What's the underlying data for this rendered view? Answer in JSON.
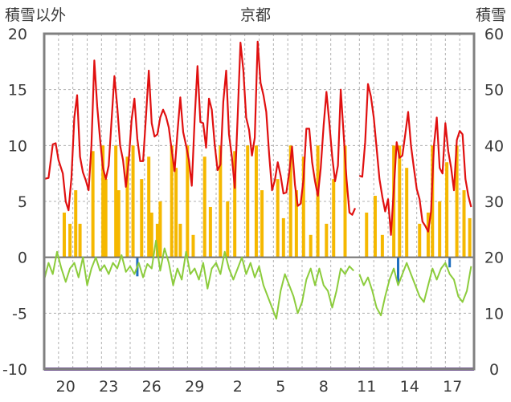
{
  "chart_data": {
    "type": "line",
    "title": "京都",
    "left_axis_label": "積雪以外",
    "right_axis_label": "積雪",
    "left_ylim": [
      -10,
      20
    ],
    "left_yticks": [
      20,
      15,
      10,
      5,
      0,
      -5,
      -10
    ],
    "right_ylim": [
      0,
      60
    ],
    "right_yticks": [
      60,
      50,
      40,
      30,
      20,
      10,
      0
    ],
    "x_tick_labels": [
      "20",
      "23",
      "26",
      "29",
      "2",
      "5",
      "8",
      "11",
      "14",
      "17"
    ],
    "x_day_range": [
      0,
      30
    ],
    "x_tick_days": [
      1.5,
      4.5,
      7.5,
      10.5,
      13.5,
      16.5,
      19.5,
      22.5,
      25.5,
      28.5
    ],
    "grid": "dashed",
    "colors": {
      "temperature": "#e01010",
      "secondary": "#8ccc3c",
      "precipitation": "#f5b800",
      "blue_bars": "#1f6fbf",
      "snow_depth": "#6a3aa0",
      "frame": "#808080"
    },
    "series": [
      {
        "key": "temperature",
        "axis": "left",
        "points": [
          [
            0.0,
            7.0
          ],
          [
            0.3,
            7.1
          ],
          [
            0.6,
            10.1
          ],
          [
            0.8,
            10.2
          ],
          [
            1.0,
            8.7
          ],
          [
            1.3,
            7.5
          ],
          [
            1.5,
            5.0
          ],
          [
            1.7,
            4.2
          ],
          [
            1.9,
            7.1
          ],
          [
            2.1,
            12.5
          ],
          [
            2.3,
            14.5
          ],
          [
            2.5,
            9.0
          ],
          [
            2.7,
            7.6
          ],
          [
            2.9,
            6.9
          ],
          [
            3.1,
            6.0
          ],
          [
            3.3,
            10.0
          ],
          [
            3.5,
            17.6
          ],
          [
            3.7,
            13.5
          ],
          [
            3.9,
            10.6
          ],
          [
            4.1,
            8.0
          ],
          [
            4.3,
            7.0
          ],
          [
            4.5,
            8.2
          ],
          [
            4.7,
            12.2
          ],
          [
            4.9,
            16.2
          ],
          [
            5.1,
            13.5
          ],
          [
            5.3,
            10.0
          ],
          [
            5.5,
            8.7
          ],
          [
            5.7,
            6.3
          ],
          [
            5.9,
            8.6
          ],
          [
            6.1,
            12.3
          ],
          [
            6.3,
            14.2
          ],
          [
            6.5,
            10.6
          ],
          [
            6.7,
            8.6
          ],
          [
            6.9,
            8.6
          ],
          [
            7.1,
            12.5
          ],
          [
            7.3,
            16.7
          ],
          [
            7.5,
            12.0
          ],
          [
            7.7,
            10.8
          ],
          [
            7.9,
            11.0
          ],
          [
            8.1,
            12.5
          ],
          [
            8.3,
            13.2
          ],
          [
            8.5,
            12.6
          ],
          [
            8.7,
            11.6
          ],
          [
            8.9,
            9.6
          ],
          [
            9.1,
            7.7
          ],
          [
            9.3,
            11.1
          ],
          [
            9.5,
            14.3
          ],
          [
            9.7,
            11.2
          ],
          [
            9.9,
            10.0
          ],
          [
            10.1,
            8.7
          ],
          [
            10.3,
            6.4
          ],
          [
            10.5,
            12.4
          ],
          [
            10.7,
            17.1
          ],
          [
            10.9,
            12.1
          ],
          [
            11.1,
            12.0
          ],
          [
            11.3,
            9.8
          ],
          [
            11.5,
            14.2
          ],
          [
            11.7,
            13.2
          ],
          [
            11.9,
            10.1
          ],
          [
            12.1,
            7.8
          ],
          [
            12.3,
            8.3
          ],
          [
            12.5,
            13.9
          ],
          [
            12.7,
            16.7
          ],
          [
            12.9,
            11.0
          ],
          [
            13.1,
            9.0
          ],
          [
            13.3,
            6.2
          ],
          [
            13.5,
            12.6
          ],
          [
            13.7,
            19.2
          ],
          [
            13.9,
            16.7
          ],
          [
            14.1,
            12.5
          ],
          [
            14.3,
            11.4
          ],
          [
            14.5,
            9.1
          ],
          [
            14.7,
            10.7
          ],
          [
            14.9,
            19.3
          ],
          [
            15.1,
            15.6
          ],
          [
            15.3,
            14.5
          ],
          [
            15.5,
            13.0
          ],
          [
            15.7,
            9.2
          ],
          [
            15.9,
            6.0
          ],
          [
            16.1,
            6.9
          ],
          [
            16.3,
            8.5
          ],
          [
            16.5,
            7.3
          ],
          [
            16.7,
            5.7
          ],
          [
            16.9,
            5.8
          ],
          [
            17.1,
            7.6
          ],
          [
            17.3,
            9.9
          ],
          [
            17.5,
            6.5
          ],
          [
            17.7,
            4.6
          ],
          [
            17.9,
            4.8
          ],
          [
            18.1,
            7.0
          ],
          [
            18.3,
            11.5
          ],
          [
            18.5,
            11.5
          ],
          [
            18.7,
            8.5
          ],
          [
            18.9,
            6.8
          ],
          [
            19.1,
            5.5
          ],
          [
            19.3,
            8.0
          ],
          [
            19.5,
            11.8
          ],
          [
            19.7,
            14.8
          ],
          [
            19.9,
            12.0
          ],
          [
            20.1,
            9.0
          ],
          [
            20.3,
            6.8
          ],
          [
            20.5,
            8.2
          ],
          [
            20.7,
            15.0
          ],
          [
            20.9,
            11.0
          ],
          [
            21.1,
            7.0
          ],
          [
            21.3,
            4.0
          ],
          [
            21.5,
            3.8
          ],
          [
            21.7,
            4.4
          ]
        ],
        "points_2": [
          [
            22.0,
            7.3
          ],
          [
            22.2,
            7.2
          ],
          [
            22.4,
            10.3
          ],
          [
            22.6,
            15.5
          ],
          [
            22.8,
            14.4
          ],
          [
            23.0,
            12.5
          ],
          [
            23.2,
            9.8
          ],
          [
            23.4,
            7.0
          ],
          [
            23.6,
            5.4
          ],
          [
            23.8,
            4.1
          ],
          [
            24.0,
            5.2
          ],
          [
            24.2,
            2.0
          ],
          [
            24.4,
            6.0
          ],
          [
            24.6,
            10.3
          ],
          [
            24.8,
            8.9
          ],
          [
            25.0,
            9.1
          ],
          [
            25.2,
            11.0
          ],
          [
            25.4,
            13.0
          ],
          [
            25.6,
            10.0
          ],
          [
            25.8,
            8.0
          ],
          [
            26.0,
            6.1
          ],
          [
            26.2,
            5.2
          ],
          [
            26.4,
            3.2
          ],
          [
            26.6,
            2.8
          ],
          [
            26.8,
            2.3
          ],
          [
            27.0,
            4.1
          ],
          [
            27.2,
            10.0
          ],
          [
            27.4,
            12.5
          ],
          [
            27.6,
            8.0
          ],
          [
            27.8,
            7.5
          ],
          [
            28.0,
            12.0
          ],
          [
            28.2,
            9.5
          ],
          [
            28.4,
            8.0
          ],
          [
            28.6,
            6.0
          ],
          [
            28.8,
            10.5
          ],
          [
            29.0,
            11.3
          ],
          [
            29.2,
            11.0
          ],
          [
            29.4,
            7.0
          ],
          [
            29.6,
            5.5
          ],
          [
            29.8,
            4.5
          ]
        ]
      },
      {
        "key": "secondary",
        "axis": "left",
        "points": [
          [
            0.0,
            -2.0
          ],
          [
            0.3,
            -0.5
          ],
          [
            0.6,
            -1.5
          ],
          [
            0.9,
            0.5
          ],
          [
            1.2,
            -1.0
          ],
          [
            1.5,
            -2.2
          ],
          [
            1.8,
            -1.0
          ],
          [
            2.1,
            -0.5
          ],
          [
            2.4,
            -1.8
          ],
          [
            2.7,
            0.0
          ],
          [
            3.0,
            -2.5
          ],
          [
            3.3,
            -1.0
          ],
          [
            3.6,
            0.0
          ],
          [
            3.9,
            -1.2
          ],
          [
            4.2,
            -0.7
          ],
          [
            4.5,
            -1.5
          ],
          [
            4.8,
            -0.5
          ],
          [
            5.1,
            -1.0
          ],
          [
            5.4,
            0.2
          ],
          [
            5.7,
            -1.3
          ],
          [
            6.0,
            -0.8
          ],
          [
            6.3,
            -1.5
          ],
          [
            6.6,
            -0.5
          ],
          [
            6.9,
            -1.8
          ],
          [
            7.2,
            -0.6
          ],
          [
            7.5,
            -1.0
          ],
          [
            7.8,
            1.5
          ],
          [
            8.1,
            -1.2
          ],
          [
            8.4,
            0.8
          ],
          [
            8.7,
            -0.5
          ],
          [
            9.0,
            -2.5
          ],
          [
            9.3,
            -1.0
          ],
          [
            9.6,
            -2.0
          ],
          [
            9.9,
            0.5
          ],
          [
            10.2,
            -1.5
          ],
          [
            10.5,
            -1.0
          ],
          [
            10.8,
            -2.0
          ],
          [
            11.1,
            -0.5
          ],
          [
            11.4,
            -2.8
          ],
          [
            11.7,
            -1.0
          ],
          [
            12.0,
            -0.5
          ],
          [
            12.3,
            -1.5
          ],
          [
            12.6,
            0.5
          ],
          [
            12.9,
            -1.0
          ],
          [
            13.2,
            -2.0
          ],
          [
            13.5,
            -1.0
          ],
          [
            13.8,
            0.0
          ],
          [
            14.1,
            -1.5
          ],
          [
            14.4,
            -0.5
          ],
          [
            14.7,
            -1.8
          ],
          [
            15.0,
            -0.8
          ],
          [
            15.3,
            -2.5
          ],
          [
            15.6,
            -3.5
          ],
          [
            15.9,
            -4.5
          ],
          [
            16.2,
            -5.5
          ],
          [
            16.5,
            -3.0
          ],
          [
            16.8,
            -1.5
          ],
          [
            17.1,
            -2.5
          ],
          [
            17.4,
            -3.5
          ],
          [
            17.7,
            -5.0
          ],
          [
            18.0,
            -4.0
          ],
          [
            18.3,
            -2.0
          ],
          [
            18.6,
            -1.0
          ],
          [
            18.9,
            -2.5
          ],
          [
            19.2,
            -1.0
          ],
          [
            19.5,
            -2.5
          ],
          [
            19.8,
            -3.0
          ],
          [
            20.1,
            -4.5
          ],
          [
            20.4,
            -3.0
          ],
          [
            20.7,
            -1.0
          ],
          [
            21.0,
            -1.5
          ],
          [
            21.3,
            -0.8
          ],
          [
            21.6,
            -1.2
          ]
        ],
        "points_2": [
          [
            22.0,
            -1.5
          ],
          [
            22.3,
            -2.5
          ],
          [
            22.6,
            -1.8
          ],
          [
            22.9,
            -3.0
          ],
          [
            23.2,
            -4.5
          ],
          [
            23.5,
            -5.2
          ],
          [
            23.8,
            -3.5
          ],
          [
            24.1,
            -2.0
          ],
          [
            24.4,
            -1.0
          ],
          [
            24.7,
            -2.5
          ],
          [
            25.0,
            -1.5
          ],
          [
            25.3,
            -0.5
          ],
          [
            25.6,
            -1.5
          ],
          [
            25.9,
            -2.5
          ],
          [
            26.2,
            -3.5
          ],
          [
            26.5,
            -4.0
          ],
          [
            26.8,
            -2.5
          ],
          [
            27.1,
            -1.0
          ],
          [
            27.4,
            -2.0
          ],
          [
            27.7,
            -1.0
          ],
          [
            28.0,
            -0.5
          ],
          [
            28.3,
            -1.5
          ],
          [
            28.6,
            -2.0
          ],
          [
            28.9,
            -3.5
          ],
          [
            29.2,
            -4.0
          ],
          [
            29.5,
            -3.0
          ],
          [
            29.8,
            -0.8
          ]
        ]
      },
      {
        "key": "precipitation",
        "axis": "left",
        "bars": [
          [
            1.4,
            4.0
          ],
          [
            1.8,
            3.0
          ],
          [
            2.2,
            6.0
          ],
          [
            2.5,
            3.0
          ],
          [
            3.4,
            9.5
          ],
          [
            4.1,
            10.0
          ],
          [
            4.3,
            7.0
          ],
          [
            5.0,
            10.0
          ],
          [
            5.2,
            6.0
          ],
          [
            5.8,
            9.0
          ],
          [
            6.2,
            10.0
          ],
          [
            6.8,
            7.0
          ],
          [
            7.3,
            9.0
          ],
          [
            7.5,
            4.0
          ],
          [
            7.9,
            3.0
          ],
          [
            8.1,
            5.0
          ],
          [
            8.9,
            10.0
          ],
          [
            9.2,
            8.0
          ],
          [
            9.5,
            3.0
          ],
          [
            10.0,
            10.0
          ],
          [
            10.4,
            2.0
          ],
          [
            11.2,
            9.0
          ],
          [
            11.6,
            4.5
          ],
          [
            12.3,
            10.0
          ],
          [
            12.8,
            5.0
          ],
          [
            13.3,
            9.5
          ],
          [
            14.2,
            10.0
          ],
          [
            14.8,
            10.0
          ],
          [
            15.2,
            6.0
          ],
          [
            16.3,
            7.0
          ],
          [
            16.7,
            3.5
          ],
          [
            17.2,
            10.0
          ],
          [
            17.6,
            6.0
          ],
          [
            18.1,
            9.0
          ],
          [
            18.6,
            2.0
          ],
          [
            19.1,
            10.0
          ],
          [
            19.7,
            3.0
          ],
          [
            20.2,
            7.0
          ],
          [
            21.0,
            10.0
          ],
          [
            22.5,
            4.0
          ],
          [
            23.1,
            5.5
          ],
          [
            23.6,
            2.0
          ],
          [
            24.4,
            10.0
          ],
          [
            24.8,
            10.0
          ],
          [
            25.3,
            8.0
          ],
          [
            26.2,
            3.0
          ],
          [
            26.8,
            4.0
          ],
          [
            27.1,
            10.0
          ],
          [
            27.6,
            5.0
          ],
          [
            28.1,
            8.5
          ],
          [
            28.8,
            10.0
          ],
          [
            29.3,
            6.0
          ],
          [
            29.7,
            3.5
          ]
        ]
      },
      {
        "key": "blue_bars",
        "axis": "left",
        "bars": [
          [
            6.5,
            -1.7
          ],
          [
            24.7,
            -2.4
          ],
          [
            28.3,
            -0.9
          ]
        ]
      },
      {
        "key": "snow_depth",
        "axis": "right",
        "points": [
          [
            0,
            0
          ],
          [
            30,
            0
          ]
        ]
      }
    ]
  }
}
